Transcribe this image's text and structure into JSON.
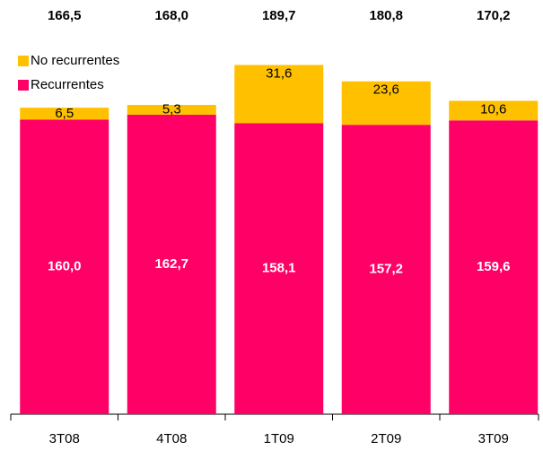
{
  "chart_data": {
    "type": "stacked_bar",
    "categories": [
      "3T08",
      "4T08",
      "1T09",
      "2T09",
      "3T09"
    ],
    "series": [
      {
        "name": "Recurrentes",
        "color": "#ff0066",
        "values": [
          160.0,
          162.7,
          158.1,
          157.2,
          159.6
        ],
        "value_labels": [
          "160,0",
          "162,7",
          "158,1",
          "157,2",
          "159,6"
        ]
      },
      {
        "name": "No recurrentes",
        "color": "#ffc000",
        "values": [
          6.5,
          5.3,
          31.6,
          23.6,
          10.6
        ],
        "value_labels": [
          "6,5",
          "5,3",
          "31,6",
          "23,6",
          "10,6"
        ]
      }
    ],
    "totals": {
      "values": [
        166.5,
        168.0,
        189.7,
        180.8,
        170.2
      ],
      "value_labels": [
        "166,5",
        "168,0",
        "189,7",
        "180,8",
        "170,2"
      ]
    },
    "ylim": [
      0,
      225
    ],
    "legend": "top-left"
  }
}
